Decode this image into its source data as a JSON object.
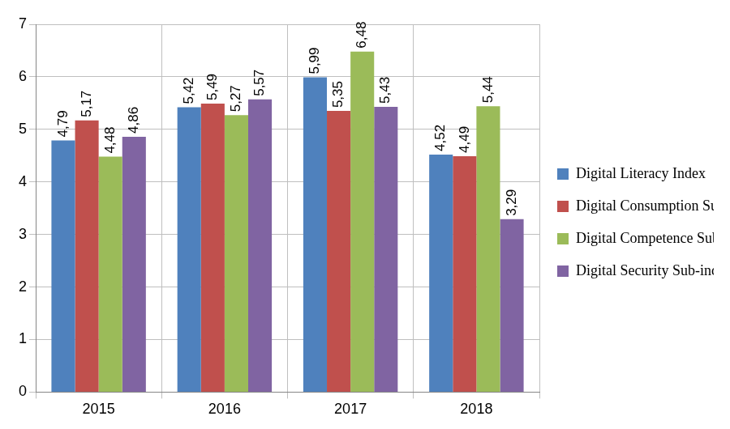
{
  "chart_data": {
    "type": "bar",
    "categories": [
      "2015",
      "2016",
      "2017",
      "2018"
    ],
    "series": [
      {
        "name": "Digital Literacy Index",
        "color": "#4f81bd",
        "values": [
          4.79,
          5.42,
          5.99,
          4.52
        ],
        "value_labels": [
          "4,79",
          "5,42",
          "5,99",
          "4,52"
        ]
      },
      {
        "name": "Digital Consumption Sub-index",
        "color": "#c0504d",
        "values": [
          5.17,
          5.49,
          5.35,
          4.49
        ],
        "value_labels": [
          "5,17",
          "5,49",
          "5,35",
          "4,49"
        ]
      },
      {
        "name": "Digital Competence Sub-index",
        "color": "#9bbb59",
        "values": [
          4.48,
          5.27,
          6.48,
          5.44
        ],
        "value_labels": [
          "4,48",
          "5,27",
          "6,48",
          "5,44"
        ]
      },
      {
        "name": "Digital Security Sub-index",
        "color": "#8064a2",
        "values": [
          4.86,
          5.57,
          5.43,
          3.29
        ],
        "value_labels": [
          "4,86",
          "5,57",
          "5,43",
          "3,29"
        ]
      }
    ],
    "ylim": [
      0,
      7
    ],
    "yticks": [
      0,
      1,
      2,
      3,
      4,
      5,
      6,
      7
    ],
    "grid": true,
    "legend": "right",
    "data_labels": true
  }
}
